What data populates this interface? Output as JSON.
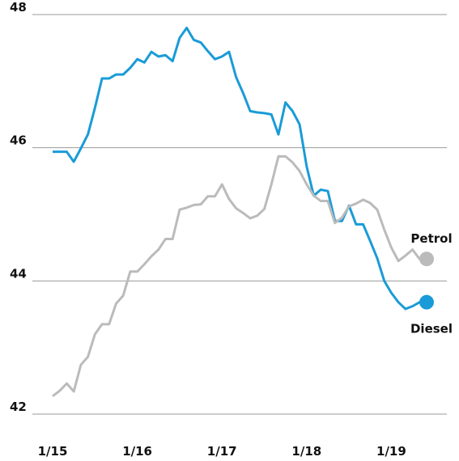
{
  "chart_data": {
    "type": "line",
    "categories": [
      "1/15",
      null,
      null,
      null,
      null,
      null,
      null,
      null,
      null,
      null,
      null,
      null,
      "1/16",
      null,
      null,
      null,
      null,
      null,
      null,
      null,
      null,
      null,
      null,
      null,
      "1/17",
      null,
      null,
      null,
      null,
      null,
      null,
      null,
      null,
      null,
      null,
      null,
      "1/18",
      null,
      null,
      null,
      null,
      null,
      null,
      null,
      null,
      null,
      null,
      null,
      "1/19",
      null,
      null,
      null,
      null,
      null
    ],
    "series": [
      {
        "name": "Diesel",
        "color": "#1a9bd7",
        "values": [
          45.94,
          45.94,
          45.94,
          45.79,
          45.99,
          46.2,
          46.6,
          47.04,
          47.04,
          47.1,
          47.1,
          47.2,
          47.33,
          47.28,
          47.44,
          47.37,
          47.39,
          47.3,
          47.65,
          47.8,
          47.62,
          47.58,
          47.45,
          47.33,
          47.37,
          47.44,
          47.06,
          46.82,
          46.55,
          46.53,
          46.52,
          46.5,
          46.2,
          46.68,
          46.55,
          46.35,
          45.72,
          45.28,
          45.37,
          45.35,
          44.9,
          44.9,
          45.13,
          44.85,
          44.85,
          44.6,
          44.34,
          44.0,
          43.82,
          43.68,
          43.58,
          43.62,
          43.68,
          43.68
        ]
      },
      {
        "name": "Petrol",
        "color": "#bbbbbb",
        "values": [
          42.27,
          42.35,
          42.46,
          42.34,
          42.74,
          42.86,
          43.2,
          43.35,
          43.35,
          43.66,
          43.78,
          44.14,
          44.14,
          44.25,
          44.37,
          44.47,
          44.63,
          44.63,
          45.07,
          45.1,
          45.14,
          45.15,
          45.27,
          45.27,
          45.45,
          45.23,
          45.09,
          45.02,
          44.94,
          44.98,
          45.08,
          45.45,
          45.87,
          45.87,
          45.78,
          45.65,
          45.45,
          45.28,
          45.2,
          45.2,
          44.87,
          44.95,
          45.12,
          45.16,
          45.22,
          45.17,
          45.07,
          44.77,
          44.5,
          44.3,
          44.38,
          44.47,
          44.33,
          44.33
        ]
      }
    ],
    "ylim": [
      42,
      48
    ],
    "yticks": [
      42,
      44,
      46,
      48
    ],
    "grid": true
  }
}
